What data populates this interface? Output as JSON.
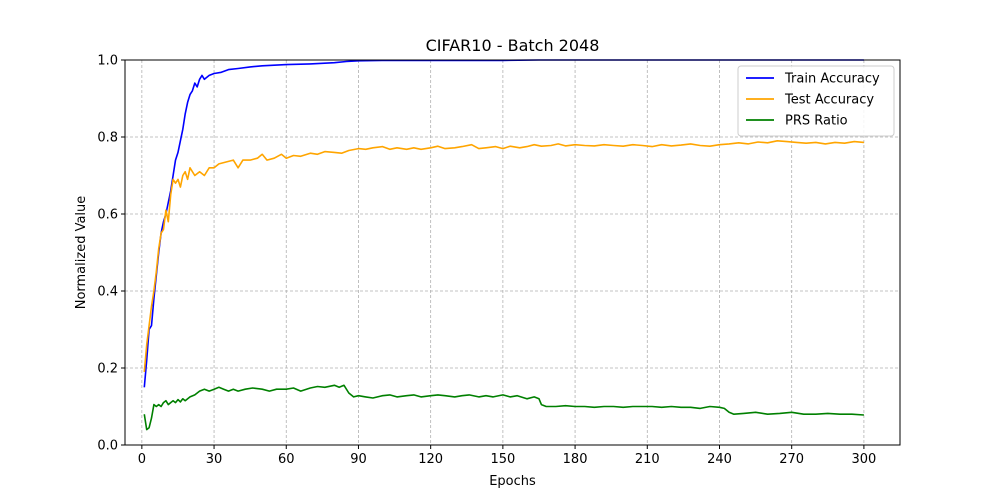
{
  "chart_data": {
    "type": "line",
    "title": "CIFAR10 - Batch 2048",
    "xlabel": "Epochs",
    "ylabel": "Normalized Value",
    "xlim": [
      -7,
      315
    ],
    "ylim": [
      0.0,
      1.0
    ],
    "xticks": [
      0,
      30,
      60,
      90,
      120,
      150,
      180,
      210,
      240,
      270,
      300
    ],
    "yticks": [
      0.0,
      0.2,
      0.4,
      0.6,
      0.8,
      1.0
    ],
    "ytick_labels": [
      "0.0",
      "0.2",
      "0.4",
      "0.6",
      "0.8",
      "1.0"
    ],
    "grid": true,
    "legend_position": "top-right",
    "series": [
      {
        "name": "Train Accuracy",
        "color": "#0000ff",
        "points": [
          [
            1,
            0.15
          ],
          [
            2,
            0.22
          ],
          [
            3,
            0.3
          ],
          [
            4,
            0.31
          ],
          [
            5,
            0.38
          ],
          [
            6,
            0.44
          ],
          [
            7,
            0.5
          ],
          [
            8,
            0.55
          ],
          [
            9,
            0.58
          ],
          [
            10,
            0.6
          ],
          [
            11,
            0.63
          ],
          [
            12,
            0.66
          ],
          [
            13,
            0.7
          ],
          [
            14,
            0.74
          ],
          [
            15,
            0.76
          ],
          [
            16,
            0.79
          ],
          [
            17,
            0.82
          ],
          [
            18,
            0.86
          ],
          [
            19,
            0.89
          ],
          [
            20,
            0.91
          ],
          [
            21,
            0.92
          ],
          [
            22,
            0.94
          ],
          [
            23,
            0.93
          ],
          [
            24,
            0.95
          ],
          [
            25,
            0.96
          ],
          [
            26,
            0.95
          ],
          [
            28,
            0.96
          ],
          [
            30,
            0.965
          ],
          [
            33,
            0.968
          ],
          [
            36,
            0.975
          ],
          [
            40,
            0.978
          ],
          [
            45,
            0.982
          ],
          [
            50,
            0.985
          ],
          [
            60,
            0.988
          ],
          [
            70,
            0.99
          ],
          [
            80,
            0.993
          ],
          [
            85,
            0.996
          ],
          [
            90,
            0.998
          ],
          [
            100,
            0.999
          ],
          [
            120,
            0.999
          ],
          [
            150,
            0.999
          ],
          [
            165,
            1.0
          ],
          [
            200,
            1.0
          ],
          [
            245,
            1.0
          ],
          [
            300,
            1.0
          ]
        ]
      },
      {
        "name": "Test Accuracy",
        "color": "#ffa500",
        "points": [
          [
            1,
            0.19
          ],
          [
            2,
            0.26
          ],
          [
            3,
            0.31
          ],
          [
            4,
            0.36
          ],
          [
            5,
            0.4
          ],
          [
            6,
            0.45
          ],
          [
            7,
            0.51
          ],
          [
            8,
            0.55
          ],
          [
            9,
            0.56
          ],
          [
            10,
            0.61
          ],
          [
            11,
            0.58
          ],
          [
            12,
            0.65
          ],
          [
            13,
            0.69
          ],
          [
            14,
            0.68
          ],
          [
            15,
            0.69
          ],
          [
            16,
            0.67
          ],
          [
            17,
            0.7
          ],
          [
            18,
            0.71
          ],
          [
            19,
            0.69
          ],
          [
            20,
            0.72
          ],
          [
            22,
            0.7
          ],
          [
            24,
            0.71
          ],
          [
            26,
            0.7
          ],
          [
            28,
            0.72
          ],
          [
            30,
            0.72
          ],
          [
            32,
            0.73
          ],
          [
            35,
            0.735
          ],
          [
            38,
            0.74
          ],
          [
            40,
            0.72
          ],
          [
            42,
            0.74
          ],
          [
            45,
            0.74
          ],
          [
            48,
            0.745
          ],
          [
            50,
            0.755
          ],
          [
            52,
            0.74
          ],
          [
            55,
            0.745
          ],
          [
            58,
            0.755
          ],
          [
            60,
            0.745
          ],
          [
            63,
            0.752
          ],
          [
            66,
            0.75
          ],
          [
            70,
            0.758
          ],
          [
            73,
            0.755
          ],
          [
            76,
            0.762
          ],
          [
            80,
            0.76
          ],
          [
            83,
            0.758
          ],
          [
            86,
            0.765
          ],
          [
            90,
            0.77
          ],
          [
            93,
            0.768
          ],
          [
            96,
            0.772
          ],
          [
            100,
            0.775
          ],
          [
            103,
            0.768
          ],
          [
            106,
            0.772
          ],
          [
            110,
            0.768
          ],
          [
            113,
            0.772
          ],
          [
            116,
            0.768
          ],
          [
            120,
            0.772
          ],
          [
            123,
            0.776
          ],
          [
            126,
            0.77
          ],
          [
            130,
            0.772
          ],
          [
            133,
            0.775
          ],
          [
            137,
            0.78
          ],
          [
            140,
            0.77
          ],
          [
            143,
            0.772
          ],
          [
            147,
            0.775
          ],
          [
            150,
            0.77
          ],
          [
            153,
            0.776
          ],
          [
            157,
            0.772
          ],
          [
            160,
            0.775
          ],
          [
            163,
            0.78
          ],
          [
            166,
            0.776
          ],
          [
            170,
            0.778
          ],
          [
            173,
            0.782
          ],
          [
            176,
            0.777
          ],
          [
            180,
            0.78
          ],
          [
            184,
            0.778
          ],
          [
            188,
            0.777
          ],
          [
            192,
            0.78
          ],
          [
            196,
            0.778
          ],
          [
            200,
            0.776
          ],
          [
            204,
            0.78
          ],
          [
            208,
            0.778
          ],
          [
            212,
            0.775
          ],
          [
            216,
            0.78
          ],
          [
            220,
            0.777
          ],
          [
            224,
            0.779
          ],
          [
            228,
            0.782
          ],
          [
            232,
            0.778
          ],
          [
            236,
            0.776
          ],
          [
            240,
            0.78
          ],
          [
            244,
            0.782
          ],
          [
            248,
            0.785
          ],
          [
            252,
            0.782
          ],
          [
            256,
            0.787
          ],
          [
            260,
            0.785
          ],
          [
            264,
            0.79
          ],
          [
            268,
            0.788
          ],
          [
            272,
            0.786
          ],
          [
            276,
            0.784
          ],
          [
            280,
            0.786
          ],
          [
            284,
            0.782
          ],
          [
            288,
            0.786
          ],
          [
            292,
            0.784
          ],
          [
            296,
            0.788
          ],
          [
            300,
            0.786
          ]
        ]
      },
      {
        "name": "PRS Ratio",
        "color": "#008000",
        "points": [
          [
            1,
            0.08
          ],
          [
            2,
            0.04
          ],
          [
            3,
            0.045
          ],
          [
            4,
            0.07
          ],
          [
            5,
            0.105
          ],
          [
            6,
            0.1
          ],
          [
            7,
            0.105
          ],
          [
            8,
            0.1
          ],
          [
            9,
            0.11
          ],
          [
            10,
            0.115
          ],
          [
            11,
            0.105
          ],
          [
            12,
            0.11
          ],
          [
            13,
            0.115
          ],
          [
            14,
            0.11
          ],
          [
            15,
            0.118
          ],
          [
            16,
            0.112
          ],
          [
            17,
            0.12
          ],
          [
            18,
            0.115
          ],
          [
            20,
            0.125
          ],
          [
            22,
            0.13
          ],
          [
            24,
            0.14
          ],
          [
            26,
            0.145
          ],
          [
            28,
            0.14
          ],
          [
            30,
            0.145
          ],
          [
            32,
            0.15
          ],
          [
            34,
            0.145
          ],
          [
            36,
            0.14
          ],
          [
            38,
            0.145
          ],
          [
            40,
            0.14
          ],
          [
            43,
            0.145
          ],
          [
            46,
            0.148
          ],
          [
            50,
            0.145
          ],
          [
            53,
            0.14
          ],
          [
            56,
            0.145
          ],
          [
            60,
            0.145
          ],
          [
            63,
            0.148
          ],
          [
            66,
            0.14
          ],
          [
            70,
            0.148
          ],
          [
            73,
            0.152
          ],
          [
            76,
            0.15
          ],
          [
            80,
            0.155
          ],
          [
            82,
            0.15
          ],
          [
            84,
            0.155
          ],
          [
            86,
            0.135
          ],
          [
            88,
            0.125
          ],
          [
            90,
            0.128
          ],
          [
            93,
            0.125
          ],
          [
            96,
            0.122
          ],
          [
            100,
            0.128
          ],
          [
            103,
            0.13
          ],
          [
            106,
            0.125
          ],
          [
            110,
            0.128
          ],
          [
            113,
            0.13
          ],
          [
            116,
            0.125
          ],
          [
            120,
            0.128
          ],
          [
            123,
            0.13
          ],
          [
            126,
            0.128
          ],
          [
            130,
            0.125
          ],
          [
            133,
            0.128
          ],
          [
            136,
            0.13
          ],
          [
            140,
            0.125
          ],
          [
            143,
            0.128
          ],
          [
            146,
            0.125
          ],
          [
            150,
            0.13
          ],
          [
            153,
            0.125
          ],
          [
            156,
            0.128
          ],
          [
            160,
            0.12
          ],
          [
            163,
            0.125
          ],
          [
            165,
            0.12
          ],
          [
            166,
            0.105
          ],
          [
            168,
            0.1
          ],
          [
            172,
            0.1
          ],
          [
            176,
            0.102
          ],
          [
            180,
            0.1
          ],
          [
            184,
            0.1
          ],
          [
            188,
            0.098
          ],
          [
            192,
            0.1
          ],
          [
            196,
            0.1
          ],
          [
            200,
            0.098
          ],
          [
            204,
            0.1
          ],
          [
            208,
            0.1
          ],
          [
            212,
            0.1
          ],
          [
            216,
            0.098
          ],
          [
            220,
            0.1
          ],
          [
            224,
            0.098
          ],
          [
            228,
            0.098
          ],
          [
            232,
            0.095
          ],
          [
            236,
            0.1
          ],
          [
            240,
            0.098
          ],
          [
            242,
            0.095
          ],
          [
            244,
            0.085
          ],
          [
            246,
            0.08
          ],
          [
            250,
            0.082
          ],
          [
            255,
            0.085
          ],
          [
            260,
            0.08
          ],
          [
            265,
            0.082
          ],
          [
            270,
            0.085
          ],
          [
            275,
            0.08
          ],
          [
            280,
            0.08
          ],
          [
            285,
            0.082
          ],
          [
            290,
            0.08
          ],
          [
            295,
            0.08
          ],
          [
            300,
            0.078
          ]
        ]
      }
    ]
  }
}
